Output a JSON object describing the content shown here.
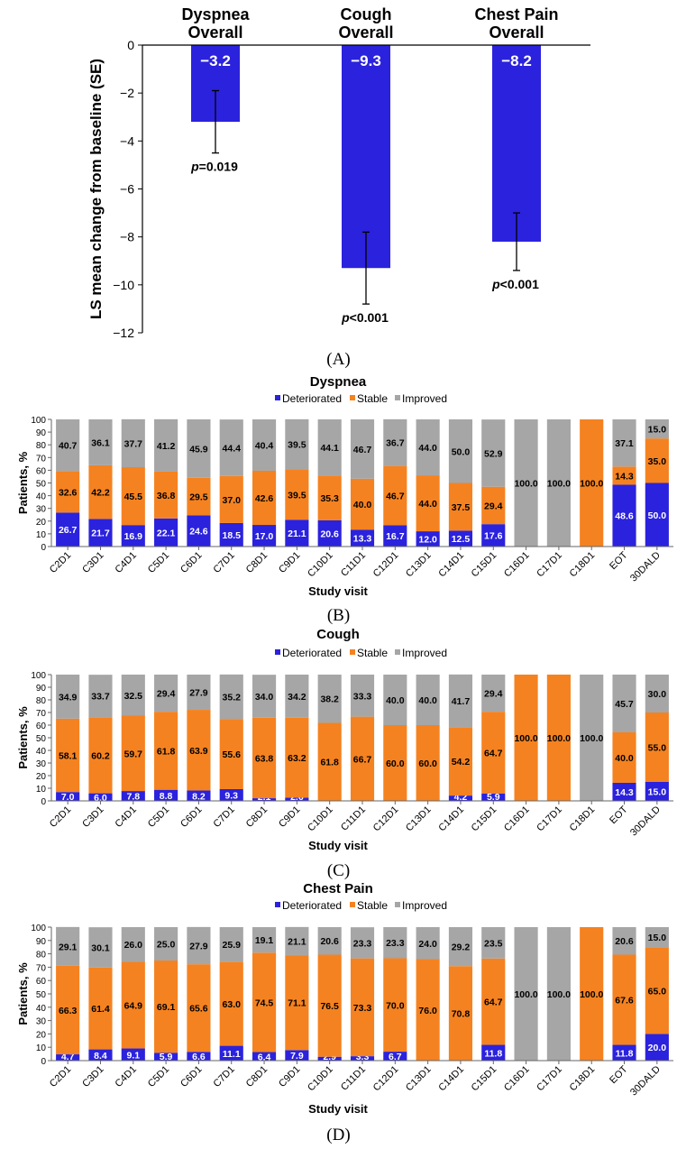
{
  "colors": {
    "blue": "#2B22DD",
    "orange": "#F58220",
    "gray": "#A6A6A6",
    "bar_a": "#2B22DD"
  },
  "panel_a": {
    "label": "(A)",
    "chart_data": {
      "type": "bar",
      "ylabel": "LS mean change from baseline (SE)",
      "ylim": [
        -12,
        0
      ],
      "yticks": [
        "0",
        "-2",
        "-4",
        "-6",
        "-8",
        "-10",
        "-12"
      ],
      "categories": [
        "Dyspnea Overall",
        "Cough Overall",
        "Chest Pain Overall"
      ],
      "category_lines": [
        [
          "Dyspnea",
          "Overall"
        ],
        [
          "Cough",
          "Overall"
        ],
        [
          "Chest Pain",
          "Overall"
        ]
      ],
      "values": [
        -3.2,
        -9.3,
        -8.2
      ],
      "value_labels": [
        "−3.2",
        "−9.3",
        "−8.2"
      ],
      "error_low": [
        -4.5,
        -10.8,
        -9.4
      ],
      "error_high": [
        -1.9,
        -7.8,
        -7.0
      ],
      "pvalues": [
        {
          "p": "p",
          "rest": "=0.019"
        },
        {
          "p": "p",
          "rest": "<0.001"
        },
        {
          "p": "p",
          "rest": "<0.001"
        }
      ]
    }
  },
  "stacked_common": {
    "legend": [
      "Deteriorated",
      "Stable",
      "Improved"
    ],
    "ylabel": "Patients, %",
    "xlabel": "Study visit",
    "ylim": [
      0,
      100
    ],
    "yticks": [
      "0",
      "10",
      "20",
      "30",
      "40",
      "50",
      "60",
      "70",
      "80",
      "90",
      "100"
    ],
    "categories": [
      "C2D1",
      "C3D1",
      "C4D1",
      "C5D1",
      "C6D1",
      "C7D1",
      "C8D1",
      "C9D1",
      "C10D1",
      "C11D1",
      "C12D1",
      "C13D1",
      "C14D1",
      "C15D1",
      "C16D1",
      "C17D1",
      "C18D1",
      "EOT",
      "30DALD"
    ]
  },
  "panel_b": {
    "label": "(B)",
    "chart_data": {
      "type": "bar",
      "stacked": true,
      "title": "Dyspnea",
      "series": [
        {
          "name": "Deteriorated",
          "values": [
            26.7,
            21.7,
            16.9,
            22.1,
            24.6,
            18.5,
            17.0,
            21.1,
            20.6,
            13.3,
            16.7,
            12.0,
            12.5,
            17.6,
            0,
            0,
            0,
            48.6,
            50.0
          ]
        },
        {
          "name": "Stable",
          "values": [
            32.6,
            42.2,
            45.5,
            36.8,
            29.5,
            37.0,
            42.6,
            39.5,
            35.3,
            40.0,
            46.7,
            44.0,
            37.5,
            29.4,
            0,
            0,
            100.0,
            14.3,
            35.0
          ]
        },
        {
          "name": "Improved",
          "values": [
            40.7,
            36.1,
            37.7,
            41.2,
            45.9,
            44.4,
            40.4,
            39.5,
            44.1,
            46.7,
            36.7,
            44.0,
            50.0,
            52.9,
            100.0,
            100.0,
            0,
            37.1,
            15.0
          ]
        }
      ]
    }
  },
  "panel_c": {
    "label": "(C)",
    "chart_data": {
      "type": "bar",
      "stacked": true,
      "title": "Cough",
      "series": [
        {
          "name": "Deteriorated",
          "values": [
            7.0,
            6.0,
            7.8,
            8.8,
            8.2,
            9.3,
            2.1,
            2.6,
            0,
            0,
            0,
            0,
            4.2,
            5.9,
            0,
            0,
            0,
            14.3,
            15.0
          ]
        },
        {
          "name": "Stable",
          "values": [
            58.1,
            60.2,
            59.7,
            61.8,
            63.9,
            55.6,
            63.8,
            63.2,
            61.8,
            66.7,
            60.0,
            60.0,
            54.2,
            64.7,
            100.0,
            100.0,
            0,
            40.0,
            55.0
          ]
        },
        {
          "name": "Improved",
          "values": [
            34.9,
            33.7,
            32.5,
            29.4,
            27.9,
            35.2,
            34.0,
            34.2,
            38.2,
            33.3,
            40.0,
            40.0,
            41.7,
            29.4,
            0,
            0,
            100.0,
            45.7,
            30.0
          ]
        }
      ]
    }
  },
  "panel_d": {
    "label": "(D)",
    "chart_data": {
      "type": "bar",
      "stacked": true,
      "title": "Chest Pain",
      "series": [
        {
          "name": "Deteriorated",
          "values": [
            4.7,
            8.4,
            9.1,
            5.9,
            6.6,
            11.1,
            6.4,
            7.9,
            2.9,
            3.3,
            6.7,
            0,
            0,
            11.8,
            0,
            0,
            0,
            11.8,
            20.0
          ]
        },
        {
          "name": "Stable",
          "values": [
            66.3,
            61.4,
            64.9,
            69.1,
            65.6,
            63.0,
            74.5,
            71.1,
            76.5,
            73.3,
            70.0,
            76.0,
            70.8,
            64.7,
            0,
            0,
            100.0,
            67.6,
            65.0
          ]
        },
        {
          "name": "Improved",
          "values": [
            29.1,
            30.1,
            26.0,
            25.0,
            27.9,
            25.9,
            19.1,
            21.1,
            20.6,
            23.3,
            23.3,
            24.0,
            29.2,
            23.5,
            100.0,
            100.0,
            0,
            20.6,
            15.0
          ]
        }
      ]
    }
  }
}
